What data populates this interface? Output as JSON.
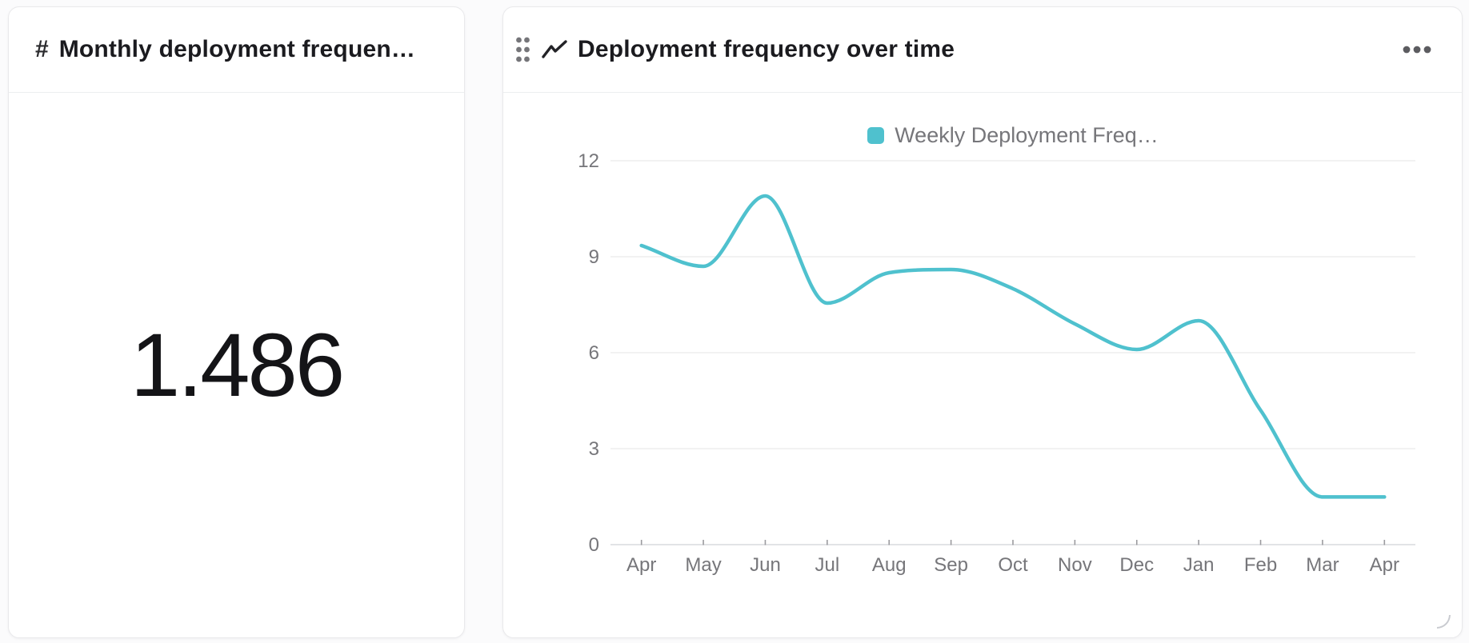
{
  "colors": {
    "accent": "#4FC1CE",
    "grid": "#ededee",
    "axis_line": "#d9dade",
    "tick": "#9b9b9f",
    "label": "#76767a",
    "title": "#1b1b1f",
    "border": "#e9e9eb"
  },
  "kpi_card": {
    "icon": "#",
    "title": "Monthly deployment frequen…",
    "value": "1.486"
  },
  "chart_card": {
    "title": "Deployment frequency over time",
    "icons": [
      "drag-handle-icon",
      "line-chart-icon",
      "ellipsis-menu-icon",
      "resize-handle-icon"
    ]
  },
  "chart_data": {
    "type": "line",
    "title": "Deployment frequency over time",
    "categories": [
      "Apr",
      "May",
      "Jun",
      "Jul",
      "Aug",
      "Sep",
      "Oct",
      "Nov",
      "Dec",
      "Jan",
      "Feb",
      "Mar",
      "Apr"
    ],
    "series": [
      {
        "name": "Weekly Deployment Freq…",
        "color": "#4FC1CE",
        "values": [
          9.35,
          8.7,
          10.9,
          7.55,
          8.5,
          8.6,
          8.0,
          6.9,
          6.1,
          7.0,
          4.2,
          1.49,
          1.49
        ]
      }
    ],
    "xlabel": "",
    "ylabel": "",
    "ylim": [
      0,
      12
    ],
    "y_ticks": [
      0,
      3,
      6,
      9,
      12
    ],
    "grid": true,
    "legend_position": "top",
    "smooth": true
  }
}
